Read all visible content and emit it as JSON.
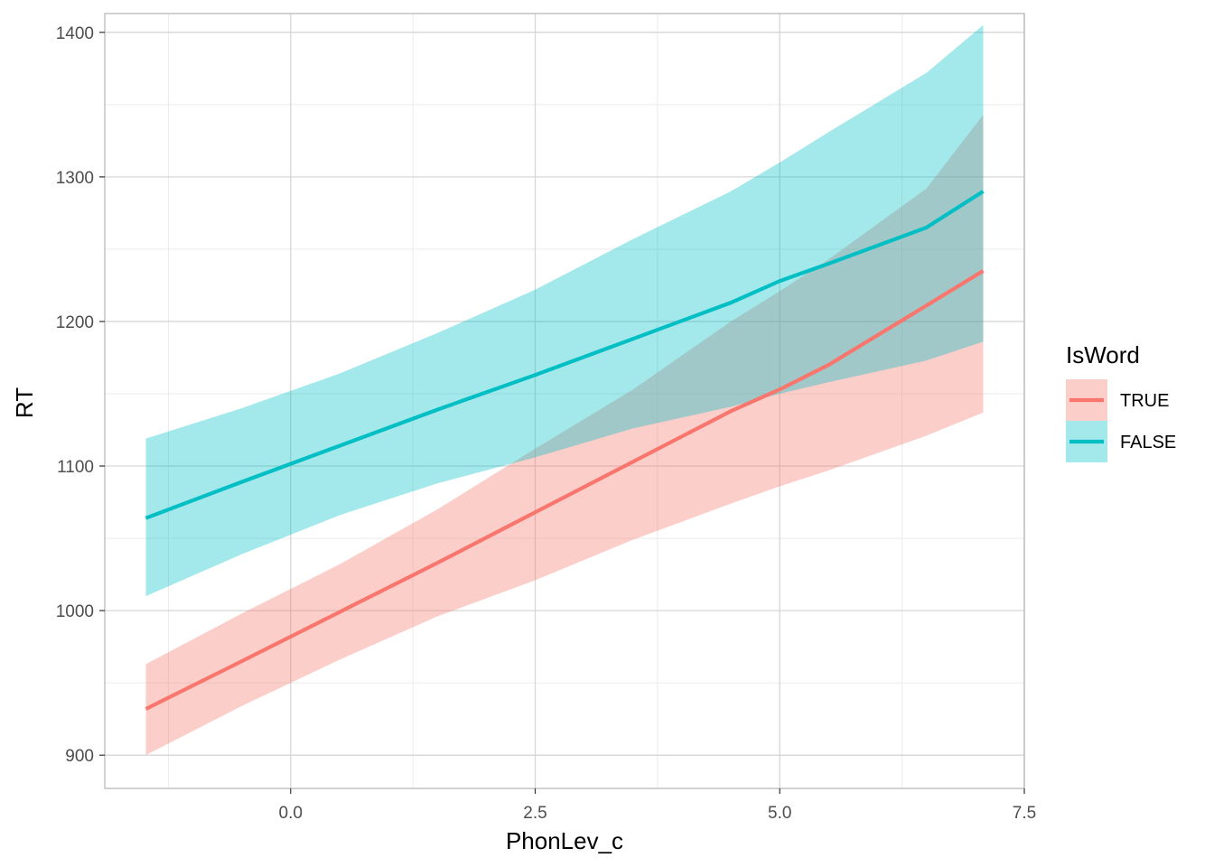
{
  "chart_data": {
    "type": "line",
    "xlabel": "PhonLev_c",
    "ylabel": "RT",
    "xlim": [
      -1.9,
      7.5
    ],
    "ylim": [
      877,
      1413
    ],
    "x_ticks": [
      0.0,
      2.5,
      5.0,
      7.5
    ],
    "x_tick_labels": [
      "0.0",
      "2.5",
      "5.0",
      "7.5"
    ],
    "y_ticks": [
      900,
      1000,
      1100,
      1200,
      1300,
      1400
    ],
    "y_tick_labels": [
      "900",
      "1000",
      "1100",
      "1200",
      "1300",
      "1400"
    ],
    "grid": true,
    "legend": {
      "title": "IsWord",
      "position": "right"
    },
    "series": [
      {
        "name": "TRUE",
        "color": "#F8766D",
        "x": [
          -1.48,
          -0.5,
          0.5,
          1.5,
          2.5,
          3.5,
          4.5,
          5.0,
          5.5,
          6.5,
          7.08
        ],
        "y": [
          932,
          965,
          999,
          1033,
          1068,
          1103,
          1138,
          1153,
          1170,
          1211,
          1235
        ],
        "lower": [
          900,
          934,
          966,
          996,
          1021,
          1049,
          1074,
          1086,
          1097,
          1121,
          1137
        ],
        "upper": [
          963,
          998,
          1032,
          1070,
          1112,
          1153,
          1200,
          1221,
          1243,
          1292,
          1343
        ]
      },
      {
        "name": "FALSE",
        "color": "#00BFC4",
        "x": [
          -1.48,
          -0.5,
          0.5,
          1.5,
          2.5,
          3.5,
          4.5,
          5.0,
          5.5,
          6.5,
          7.08
        ],
        "y": [
          1064,
          1089,
          1114,
          1139,
          1163,
          1188,
          1213,
          1228,
          1240,
          1265,
          1290
        ],
        "lower": [
          1010,
          1039,
          1066,
          1088,
          1106,
          1126,
          1141,
          1150,
          1158,
          1173,
          1186
        ],
        "upper": [
          1119,
          1140,
          1164,
          1192,
          1222,
          1257,
          1290,
          1310,
          1331,
          1372,
          1405
        ]
      }
    ]
  }
}
